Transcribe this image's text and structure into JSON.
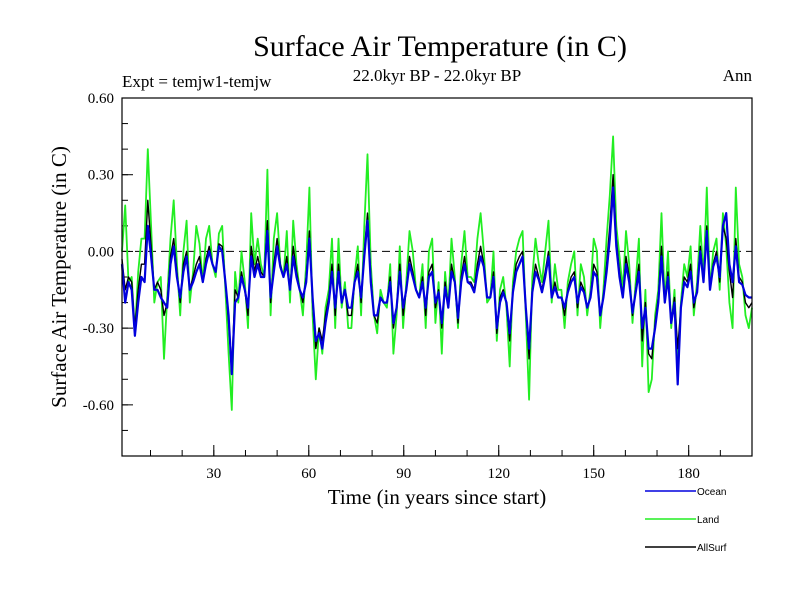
{
  "chart_data": {
    "type": "line",
    "title": "Surface Air Temperature (in C)",
    "subtitle": "22.0kyr BP - 22.0kyr BP",
    "left_label": "Expt = temjw1-temjw",
    "right_label": "Ann",
    "xlabel": "Time (in years since start)",
    "ylabel": "Surface Air Temperature (in C)",
    "xlim": [
      1,
      200
    ],
    "ylim": [
      -0.8,
      0.6
    ],
    "x_ticks": [
      30,
      60,
      90,
      120,
      150,
      180
    ],
    "x_minor_step": 10,
    "y_ticks": [
      {
        "value": 0.6,
        "label": "0.60"
      },
      {
        "value": 0.3,
        "label": "0.30"
      },
      {
        "value": 0.0,
        "label": "0.00"
      },
      {
        "value": -0.3,
        "label": "-0.30"
      },
      {
        "value": -0.6,
        "label": "-0.60"
      }
    ],
    "y_minor_step": 0.1,
    "zero_line": true,
    "series": [
      {
        "name": "Land",
        "color": "#22ee22",
        "values": [
          0.0,
          0.18,
          -0.12,
          -0.1,
          -0.32,
          -0.08,
          0.05,
          0.05,
          0.4,
          0.1,
          -0.2,
          -0.12,
          -0.1,
          -0.42,
          -0.18,
          0.05,
          0.2,
          -0.05,
          -0.25,
          0.0,
          0.12,
          -0.2,
          -0.08,
          0.1,
          0.03,
          -0.12,
          0.05,
          0.1,
          -0.05,
          -0.1,
          0.07,
          0.1,
          -0.15,
          -0.4,
          -0.62,
          -0.08,
          -0.2,
          0.0,
          -0.12,
          -0.3,
          0.15,
          -0.05,
          0.05,
          -0.05,
          -0.1,
          0.32,
          -0.25,
          0.05,
          0.15,
          -0.05,
          -0.1,
          0.08,
          -0.2,
          0.12,
          -0.05,
          -0.15,
          -0.25,
          -0.05,
          0.25,
          -0.25,
          -0.5,
          -0.3,
          -0.4,
          -0.22,
          -0.15,
          0.05,
          -0.3,
          0.05,
          -0.22,
          -0.12,
          -0.3,
          -0.3,
          -0.1,
          0.02,
          -0.25,
          0.1,
          0.38,
          -0.05,
          -0.25,
          -0.32,
          -0.15,
          -0.2,
          -0.22,
          -0.05,
          -0.4,
          -0.25,
          0.02,
          -0.3,
          -0.12,
          0.08,
          0.0,
          -0.15,
          -0.18,
          -0.05,
          -0.3,
          0.0,
          0.05,
          -0.28,
          -0.12,
          -0.4,
          -0.08,
          -0.22,
          0.05,
          -0.1,
          -0.3,
          -0.05,
          0.08,
          -0.1,
          -0.1,
          -0.12,
          0.05,
          0.15,
          0.0,
          -0.2,
          -0.18,
          0.0,
          -0.35,
          -0.15,
          -0.1,
          -0.22,
          -0.45,
          -0.12,
          0.0,
          0.05,
          0.08,
          -0.25,
          -0.58,
          -0.1,
          0.05,
          -0.05,
          -0.12,
          0.0,
          0.12,
          -0.2,
          -0.05,
          -0.15,
          -0.15,
          -0.3,
          -0.12,
          -0.05,
          0.0,
          -0.25,
          -0.05,
          -0.1,
          -0.25,
          -0.15,
          0.05,
          0.0,
          -0.3,
          -0.15,
          0.05,
          0.22,
          0.45,
          0.1,
          -0.02,
          -0.15,
          0.08,
          -0.05,
          -0.28,
          -0.12,
          0.05,
          -0.45,
          -0.15,
          -0.55,
          -0.5,
          -0.25,
          -0.15,
          0.15,
          -0.2,
          0.0,
          -0.3,
          -0.15,
          -0.45,
          -0.2,
          -0.05,
          -0.1,
          0.02,
          -0.25,
          -0.12,
          0.1,
          -0.1,
          0.25,
          -0.15,
          0.0,
          0.05,
          -0.15,
          0.15,
          0.02,
          -0.2,
          -0.3,
          0.25,
          -0.05,
          -0.1,
          -0.25,
          -0.3,
          -0.22
        ]
      },
      {
        "name": "AllSurf",
        "color": "#000000",
        "values": [
          -0.03,
          -0.15,
          -0.1,
          -0.12,
          -0.3,
          -0.15,
          -0.05,
          -0.05,
          0.2,
          0.02,
          -0.15,
          -0.12,
          -0.15,
          -0.25,
          -0.2,
          -0.02,
          0.05,
          -0.08,
          -0.2,
          -0.05,
          0.0,
          -0.15,
          -0.1,
          -0.05,
          -0.02,
          -0.12,
          -0.03,
          0.02,
          -0.05,
          -0.08,
          0.03,
          0.02,
          -0.12,
          -0.28,
          -0.45,
          -0.15,
          -0.18,
          -0.08,
          -0.15,
          -0.25,
          0.02,
          -0.08,
          -0.02,
          -0.08,
          -0.1,
          0.12,
          -0.2,
          -0.05,
          0.05,
          -0.05,
          -0.1,
          -0.02,
          -0.15,
          0.02,
          -0.08,
          -0.15,
          -0.2,
          -0.1,
          0.08,
          -0.2,
          -0.38,
          -0.3,
          -0.35,
          -0.25,
          -0.18,
          -0.05,
          -0.25,
          -0.05,
          -0.2,
          -0.15,
          -0.25,
          -0.25,
          -0.12,
          -0.05,
          -0.2,
          0.0,
          0.15,
          -0.1,
          -0.25,
          -0.28,
          -0.18,
          -0.2,
          -0.2,
          -0.1,
          -0.3,
          -0.22,
          -0.05,
          -0.25,
          -0.15,
          -0.02,
          -0.08,
          -0.15,
          -0.18,
          -0.1,
          -0.25,
          -0.08,
          -0.05,
          -0.22,
          -0.15,
          -0.3,
          -0.12,
          -0.22,
          -0.05,
          -0.12,
          -0.28,
          -0.1,
          -0.02,
          -0.12,
          -0.12,
          -0.15,
          -0.05,
          0.02,
          -0.05,
          -0.18,
          -0.18,
          -0.08,
          -0.32,
          -0.18,
          -0.15,
          -0.2,
          -0.35,
          -0.15,
          -0.05,
          -0.02,
          0.0,
          -0.22,
          -0.42,
          -0.15,
          -0.05,
          -0.1,
          -0.15,
          -0.08,
          0.0,
          -0.18,
          -0.12,
          -0.18,
          -0.18,
          -0.25,
          -0.15,
          -0.1,
          -0.08,
          -0.22,
          -0.12,
          -0.15,
          -0.22,
          -0.18,
          -0.05,
          -0.08,
          -0.25,
          -0.18,
          -0.05,
          0.1,
          0.3,
          0.05,
          -0.08,
          -0.18,
          -0.02,
          -0.1,
          -0.25,
          -0.15,
          -0.05,
          -0.35,
          -0.2,
          -0.4,
          -0.42,
          -0.28,
          -0.18,
          0.02,
          -0.2,
          -0.08,
          -0.28,
          -0.18,
          -0.38,
          -0.22,
          -0.1,
          -0.12,
          -0.05,
          -0.22,
          -0.15,
          0.02,
          -0.12,
          0.1,
          -0.15,
          -0.05,
          0.0,
          -0.12,
          0.1,
          0.05,
          -0.08,
          -0.18,
          0.05,
          -0.1,
          -0.12,
          -0.2,
          -0.22,
          -0.2
        ]
      },
      {
        "name": "Ocean",
        "color": "#0000dd",
        "values": [
          -0.05,
          -0.2,
          -0.12,
          -0.15,
          -0.33,
          -0.2,
          -0.1,
          -0.12,
          0.1,
          -0.02,
          -0.15,
          -0.15,
          -0.18,
          -0.2,
          -0.22,
          -0.05,
          0.02,
          -0.1,
          -0.18,
          -0.08,
          -0.02,
          -0.15,
          -0.12,
          -0.08,
          -0.05,
          -0.12,
          -0.05,
          0.0,
          -0.05,
          -0.08,
          0.02,
          0.0,
          -0.12,
          -0.25,
          -0.48,
          -0.2,
          -0.18,
          -0.1,
          -0.15,
          -0.22,
          -0.02,
          -0.1,
          -0.05,
          -0.1,
          -0.1,
          0.08,
          -0.18,
          -0.08,
          0.02,
          -0.06,
          -0.1,
          -0.05,
          -0.15,
          -0.02,
          -0.1,
          -0.15,
          -0.18,
          -0.12,
          0.05,
          -0.18,
          -0.35,
          -0.32,
          -0.38,
          -0.28,
          -0.2,
          -0.08,
          -0.22,
          -0.08,
          -0.2,
          -0.15,
          -0.22,
          -0.22,
          -0.12,
          -0.08,
          -0.18,
          -0.02,
          0.12,
          -0.12,
          -0.25,
          -0.25,
          -0.18,
          -0.2,
          -0.2,
          -0.12,
          -0.28,
          -0.22,
          -0.08,
          -0.22,
          -0.15,
          -0.05,
          -0.1,
          -0.15,
          -0.18,
          -0.12,
          -0.22,
          -0.1,
          -0.08,
          -0.2,
          -0.16,
          -0.28,
          -0.14,
          -0.22,
          -0.08,
          -0.12,
          -0.26,
          -0.12,
          -0.05,
          -0.12,
          -0.13,
          -0.16,
          -0.08,
          -0.02,
          -0.06,
          -0.18,
          -0.18,
          -0.1,
          -0.3,
          -0.2,
          -0.16,
          -0.2,
          -0.32,
          -0.16,
          -0.08,
          -0.05,
          -0.02,
          -0.22,
          -0.38,
          -0.16,
          -0.08,
          -0.11,
          -0.16,
          -0.1,
          -0.02,
          -0.18,
          -0.14,
          -0.18,
          -0.18,
          -0.22,
          -0.16,
          -0.12,
          -0.1,
          -0.2,
          -0.14,
          -0.16,
          -0.22,
          -0.18,
          -0.08,
          -0.1,
          -0.25,
          -0.18,
          -0.08,
          0.05,
          0.25,
          0.02,
          -0.1,
          -0.18,
          -0.05,
          -0.12,
          -0.24,
          -0.16,
          -0.08,
          -0.3,
          -0.22,
          -0.38,
          -0.38,
          -0.3,
          -0.2,
          -0.02,
          -0.2,
          -0.1,
          -0.28,
          -0.2,
          -0.52,
          -0.22,
          -0.12,
          -0.14,
          -0.08,
          -0.2,
          -0.16,
          0.0,
          -0.12,
          0.08,
          -0.15,
          -0.06,
          -0.02,
          -0.1,
          0.1,
          0.15,
          -0.05,
          -0.12,
          0.02,
          -0.12,
          -0.13,
          -0.17,
          -0.18,
          -0.18
        ]
      }
    ],
    "legend": {
      "position": "bottom-right",
      "entries": [
        {
          "name": "Ocean",
          "color": "#0000dd"
        },
        {
          "name": "Land",
          "color": "#22ee22"
        },
        {
          "name": "AllSurf",
          "color": "#000000"
        }
      ]
    }
  }
}
